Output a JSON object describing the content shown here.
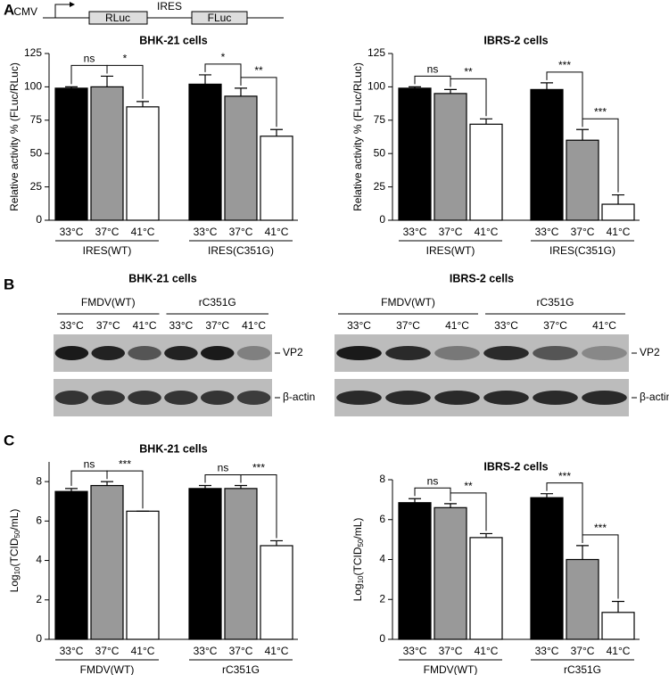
{
  "panel_labels": [
    "A",
    "B",
    "C"
  ],
  "construct": {
    "promoter": "CMV",
    "genes": [
      "RLuc",
      "FLuc"
    ],
    "element": "IRES"
  },
  "chart_data": [
    {
      "type": "bar",
      "title": "BHK-21 cells",
      "ylabel": [
        "Relative activity % (FLuc/RLuc)"
      ],
      "categories": [
        "33°C",
        "37°C",
        "41°C",
        "33°C",
        "37°C",
        "41°C"
      ],
      "groups": [
        "IRES(WT)",
        "IRES(C351G)"
      ],
      "values": [
        99,
        100,
        85,
        102,
        93,
        63
      ],
      "errors": [
        1,
        8,
        4,
        7,
        6,
        5
      ],
      "colors": [
        "#000000",
        "#999999",
        "#ffffff"
      ],
      "ylim": [
        0,
        125
      ],
      "yticks": [
        0,
        25,
        50,
        75,
        100,
        125
      ],
      "annotations": [
        {
          "text": "ns",
          "between": [
            0,
            1
          ]
        },
        {
          "text": "*",
          "between": [
            1,
            2
          ]
        },
        {
          "text": "*",
          "between": [
            3,
            4
          ]
        },
        {
          "text": "**",
          "between": [
            4,
            5
          ]
        }
      ]
    },
    {
      "type": "bar",
      "title": "IBRS-2 cells",
      "ylabel": [
        "Relative activity % (FLuc/RLuc)"
      ],
      "categories": [
        "33°C",
        "37°C",
        "41°C",
        "33°C",
        "37°C",
        "41°C"
      ],
      "groups": [
        "IRES(WT)",
        "IRES(C351G)"
      ],
      "values": [
        99,
        95,
        72,
        98,
        60,
        12
      ],
      "errors": [
        1,
        3,
        4,
        5,
        8,
        7
      ],
      "colors": [
        "#000000",
        "#999999",
        "#ffffff"
      ],
      "ylim": [
        0,
        125
      ],
      "yticks": [
        0,
        25,
        50,
        75,
        100,
        125
      ],
      "annotations": [
        {
          "text": "ns",
          "between": [
            0,
            1
          ]
        },
        {
          "text": "**",
          "between": [
            1,
            2
          ]
        },
        {
          "text": "***",
          "between": [
            3,
            4
          ]
        },
        {
          "text": "***",
          "between": [
            4,
            5
          ]
        }
      ]
    },
    {
      "type": "bar",
      "title": "BHK-21 cells",
      "ylabel": [
        "Log",
        "10",
        "(TCID",
        "50",
        "/mL)"
      ],
      "categories": [
        "33°C",
        "37°C",
        "41°C",
        "33°C",
        "37°C",
        "41°C"
      ],
      "groups": [
        "FMDV(WT)",
        "rC351G"
      ],
      "values": [
        7.5,
        7.8,
        6.5,
        7.65,
        7.65,
        4.75
      ],
      "errors": [
        0.15,
        0.2,
        0,
        0.15,
        0.15,
        0.25
      ],
      "colors": [
        "#000000",
        "#999999",
        "#ffffff"
      ],
      "ylim": [
        0,
        9
      ],
      "yticks": [
        0,
        2,
        4,
        6,
        8
      ],
      "annotations": [
        {
          "text": "ns",
          "between": [
            0,
            1
          ]
        },
        {
          "text": "***",
          "between": [
            1,
            2
          ]
        },
        {
          "text": "ns",
          "between": [
            3,
            4
          ]
        },
        {
          "text": "***",
          "between": [
            4,
            5
          ]
        }
      ]
    },
    {
      "type": "bar",
      "title": "IBRS-2 cells",
      "ylabel": [
        "Log",
        "10",
        "(TCID",
        "50",
        "/mL)"
      ],
      "categories": [
        "33°C",
        "37°C",
        "41°C",
        "33°C",
        "37°C",
        "41°C"
      ],
      "groups": [
        "FMDV(WT)",
        "rC351G"
      ],
      "values": [
        6.85,
        6.6,
        5.1,
        7.1,
        4.0,
        1.35
      ],
      "errors": [
        0.2,
        0.2,
        0.2,
        0.2,
        0.7,
        0.55
      ],
      "colors": [
        "#000000",
        "#999999",
        "#ffffff"
      ],
      "ylim": [
        0,
        8
      ],
      "yticks": [
        0,
        2,
        4,
        6,
        8
      ],
      "annotations": [
        {
          "text": "ns",
          "between": [
            0,
            1
          ]
        },
        {
          "text": "**",
          "between": [
            1,
            2
          ]
        },
        {
          "text": "***",
          "between": [
            3,
            4
          ]
        },
        {
          "text": "***",
          "between": [
            4,
            5
          ]
        }
      ]
    }
  ],
  "blots": [
    {
      "title": "BHK-21 cells",
      "groups": [
        "FMDV(WT)",
        "rC351G"
      ],
      "lanes": [
        "33°C",
        "37°C",
        "41°C",
        "33°C",
        "37°C",
        "41°C"
      ],
      "bands": [
        "VP2",
        "β-actin"
      ]
    },
    {
      "title": "IBRS-2 cells",
      "groups": [
        "FMDV(WT)",
        "rC351G"
      ],
      "lanes": [
        "33°C",
        "37°C",
        "41°C",
        "33°C",
        "37°C",
        "41°C"
      ],
      "bands": [
        "VP2",
        "β-actin"
      ]
    }
  ]
}
